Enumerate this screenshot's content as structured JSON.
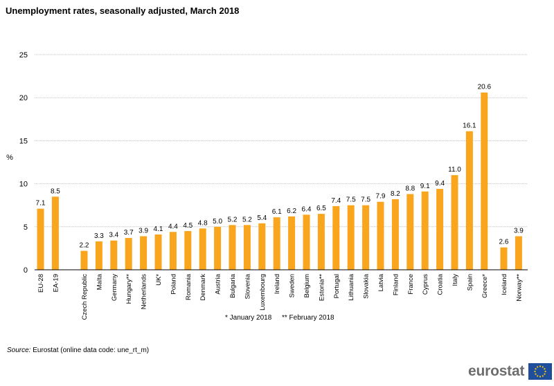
{
  "title": "Unemployment rates, seasonally adjusted, March 2018",
  "source": {
    "label": "Source:",
    "text": "Eurostat (online data code: une_rt_m)"
  },
  "logo": {
    "text": "eurostat",
    "flag_color": "#1f4e9c",
    "star_color": "#ffcc00"
  },
  "colors": {
    "bar": "#f9a51d",
    "grid": "#bfbfbf",
    "axis": "#000000"
  },
  "chart_data": {
    "type": "bar",
    "title": "Unemployment rates, seasonally adjusted, March 2018",
    "ylabel": "%",
    "xlabel": "",
    "ylim": [
      0,
      25
    ],
    "yticks": [
      0,
      5,
      10,
      15,
      20,
      25
    ],
    "grid": true,
    "groups": [
      {
        "categories": [
          "EU-28",
          "EA-19"
        ],
        "values": [
          7.1,
          8.5
        ]
      },
      {
        "categories": [
          "Czech Republic",
          "Malta",
          "Germany",
          "Hungary**",
          "Netherlands",
          "UK*",
          "Poland",
          "Romania",
          "Denmark",
          "Austria",
          "Bulgaria",
          "Slovenia",
          "Luxembourg",
          "Ireland",
          "Sweden",
          "Belgium",
          "Estonia**",
          "Portugal",
          "Lithuania",
          "Slovakia",
          "Latvia",
          "Finland",
          "France",
          "Cyprus",
          "Croatia",
          "Italy",
          "Spain",
          "Greece*"
        ],
        "values": [
          2.2,
          3.3,
          3.4,
          3.7,
          3.9,
          4.1,
          4.4,
          4.5,
          4.8,
          5.0,
          5.2,
          5.2,
          5.4,
          6.1,
          6.2,
          6.4,
          6.5,
          7.4,
          7.5,
          7.5,
          7.9,
          8.2,
          8.8,
          9.1,
          9.4,
          11.0,
          16.1,
          20.6
        ]
      },
      {
        "categories": [
          "Iceland",
          "Norway**"
        ],
        "values": [
          2.6,
          3.9
        ]
      }
    ],
    "notes": [
      "* January 2018",
      "** February 2018"
    ]
  }
}
